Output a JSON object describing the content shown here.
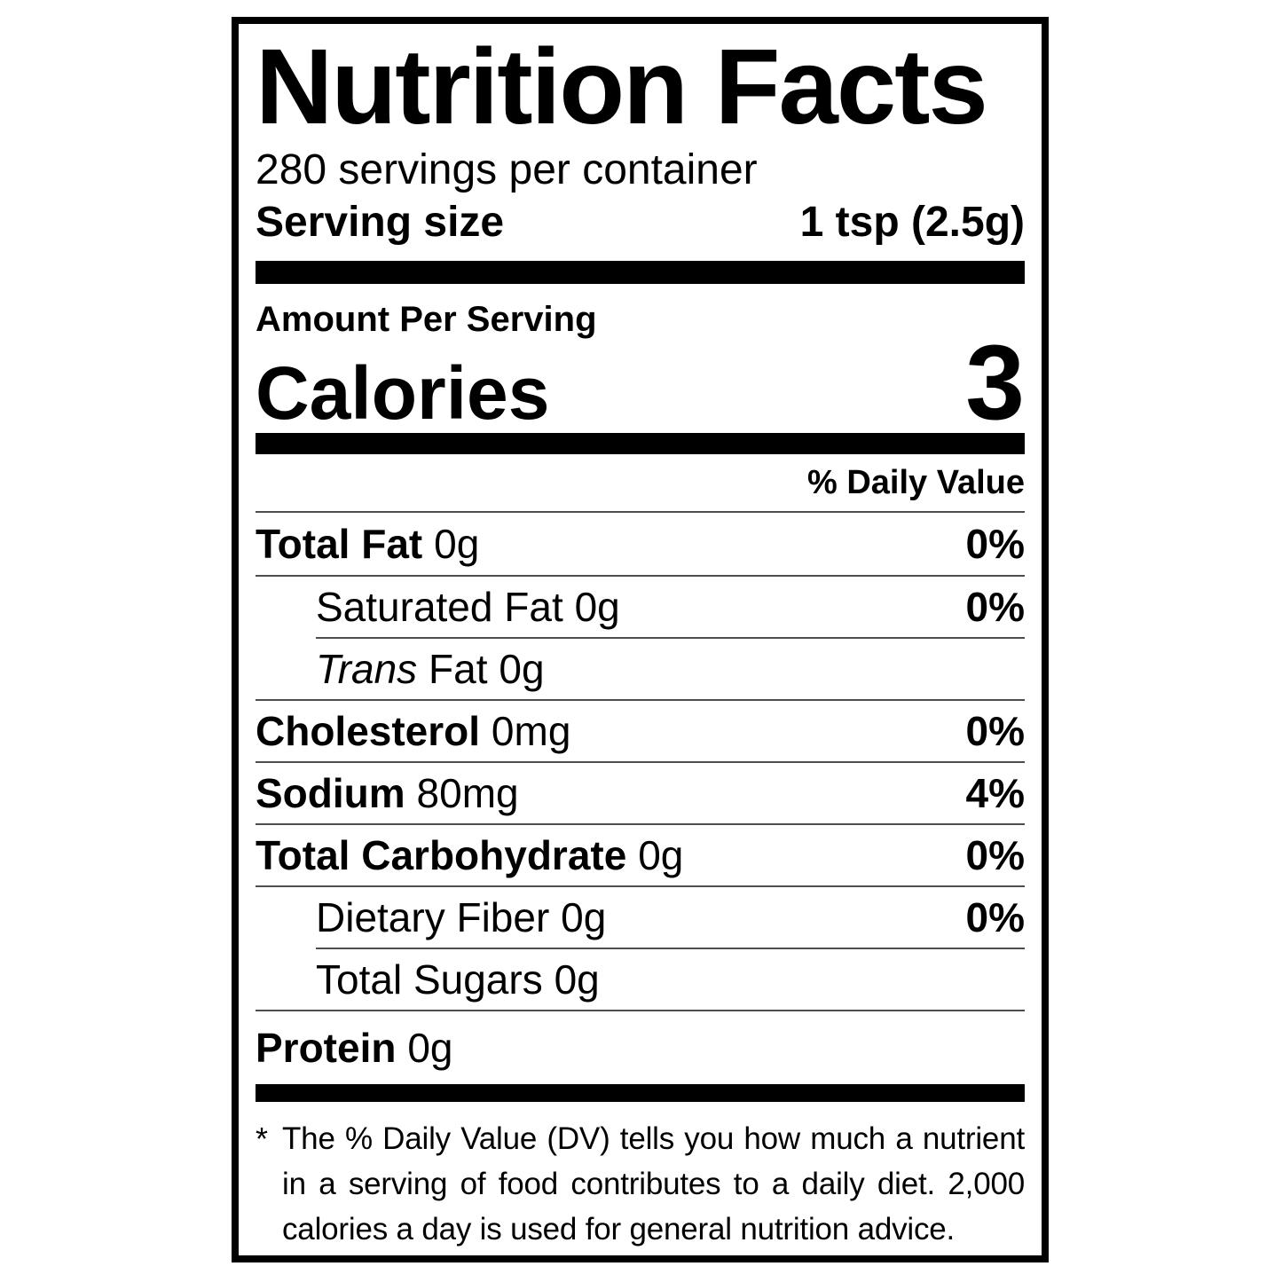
{
  "label": {
    "title": "Nutrition Facts",
    "servings_per_container": "280 servings per container",
    "serving_size": {
      "label": "Serving size",
      "value": "1 tsp (2.5g)"
    },
    "amount_per_serving": "Amount Per Serving",
    "calories": {
      "label": "Calories",
      "value": "3"
    },
    "daily_value_header": "% Daily Value",
    "rows": [
      {
        "name": "Total Fat",
        "amount": "0g",
        "dv": "0%"
      },
      {
        "name": "Saturated Fat",
        "amount": "0g",
        "dv": "0%"
      },
      {
        "name_italic": "Trans",
        "name": "Fat",
        "amount": "0g",
        "dv": ""
      },
      {
        "name": "Cholesterol",
        "amount": "0mg",
        "dv": "0%"
      },
      {
        "name": "Sodium",
        "amount": "80mg",
        "dv": "4%"
      },
      {
        "name": "Total Carbohydrate",
        "amount": "0g",
        "dv": "0%"
      },
      {
        "name": "Dietary Fiber",
        "amount": "0g",
        "dv": "0%"
      },
      {
        "name": "Total Sugars",
        "amount": "0g",
        "dv": ""
      },
      {
        "name": "Protein",
        "amount": "0g",
        "dv": ""
      }
    ],
    "footnote": {
      "asterisk": "*",
      "text": "The % Daily Value (DV) tells you how much a nutrient in a serving of food contributes to a daily diet. 2,000 calories a day is used for general nutrition advice."
    },
    "colors": {
      "ink": "#000000",
      "paper": "#ffffff"
    }
  }
}
